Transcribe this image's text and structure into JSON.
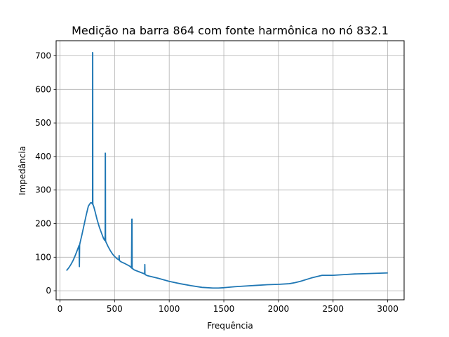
{
  "chart_data": {
    "type": "line",
    "title": "Medição na barra 864 com fonte harmônica no nó 832.1",
    "xlabel": "Frequência",
    "ylabel": "Impedância",
    "xlim": [
      -35,
      3150
    ],
    "ylim": [
      -27,
      745
    ],
    "xticks": [
      0,
      500,
      1000,
      1500,
      2000,
      2500,
      3000
    ],
    "yticks": [
      0,
      100,
      200,
      300,
      400,
      500,
      600,
      700
    ],
    "grid": true,
    "line_color": "#1f77b4",
    "series": [
      {
        "name": "",
        "x": [
          60,
          80,
          100,
          120,
          140,
          160,
          175,
          178,
          180,
          182,
          200,
          220,
          240,
          260,
          280,
          290,
          298,
          299,
          300,
          301,
          302,
          310,
          320,
          330,
          340,
          360,
          380,
          400,
          410,
          414,
          415,
          416,
          417,
          418,
          420,
          440,
          460,
          480,
          500,
          520,
          540,
          542,
          544,
          560,
          600,
          640,
          655,
          658,
          659,
          660,
          661,
          662,
          665,
          680,
          720,
          760,
          775,
          777,
          778,
          779,
          780,
          800,
          900,
          1000,
          1100,
          1200,
          1300,
          1400,
          1450,
          1500,
          1600,
          1700,
          1800,
          1900,
          2000,
          2100,
          2150,
          2200,
          2300,
          2400,
          2500,
          2600,
          2700,
          2800,
          2900,
          3000
        ],
        "y": [
          60,
          68,
          78,
          90,
          105,
          122,
          135,
          72,
          135,
          140,
          165,
          195,
          225,
          252,
          262,
          262,
          258,
          710,
          708,
          262,
          257,
          250,
          238,
          225,
          212,
          190,
          172,
          155,
          150,
          165,
          410,
          408,
          168,
          148,
          146,
          132,
          120,
          110,
          102,
          96,
          92,
          105,
          90,
          86,
          80,
          73,
          68,
          213,
          212,
          213,
          66,
          66,
          66,
          62,
          57,
          52,
          50,
          78,
          50,
          50,
          48,
          45,
          37,
          28,
          21,
          15,
          10,
          8,
          8,
          9,
          12,
          14,
          16,
          18,
          19,
          21,
          24,
          28,
          38,
          46,
          46,
          48,
          50,
          51,
          52,
          53
        ]
      }
    ]
  }
}
